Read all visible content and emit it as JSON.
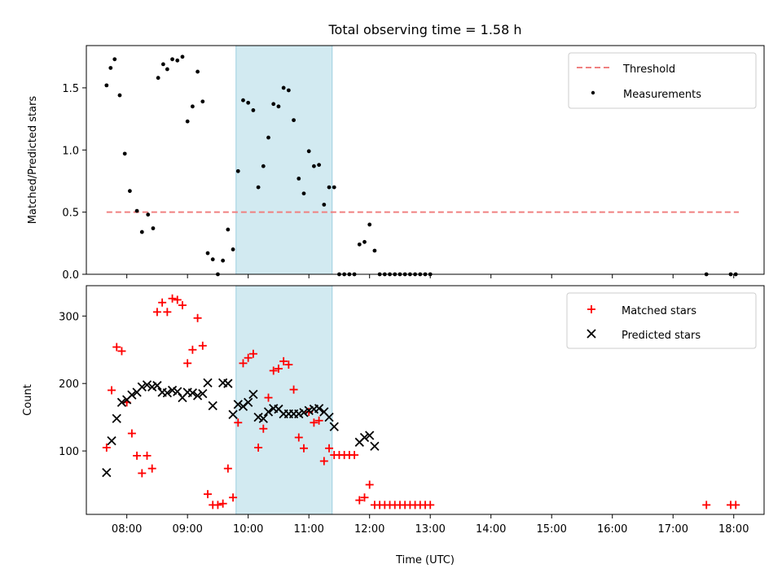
{
  "chart_data": [
    {
      "type": "scatter",
      "title": "Total observing time = 1.58 h",
      "ylabel": "Matched/Predicted stars",
      "xlabel": "",
      "xlim": [
        "07:20",
        "18:30"
      ],
      "ylim": [
        0,
        1.84
      ],
      "yticks": [
        0.0,
        0.5,
        1.0,
        1.5
      ],
      "ytick_labels": [
        "0.0",
        "0.5",
        "1.0",
        "1.5"
      ],
      "highlight_span": {
        "start": "09:48",
        "end": "11:23",
        "color": "#add8e6"
      },
      "threshold": {
        "name": "Threshold",
        "value": 0.5,
        "from": "07:40",
        "to": "18:05",
        "color": "#f08080",
        "style": "dashed"
      },
      "legend_position": "upper right",
      "series": [
        {
          "name": "Measurements",
          "marker": "dot",
          "color": "#000000",
          "points": [
            [
              "07:40",
              1.52
            ],
            [
              "07:44",
              1.66
            ],
            [
              "07:48",
              1.73
            ],
            [
              "07:53",
              1.44
            ],
            [
              "07:58",
              0.97
            ],
            [
              "08:03",
              0.67
            ],
            [
              "08:10",
              0.51
            ],
            [
              "08:15",
              0.34
            ],
            [
              "08:21",
              0.48
            ],
            [
              "08:26",
              0.37
            ],
            [
              "08:31",
              1.58
            ],
            [
              "08:36",
              1.69
            ],
            [
              "08:40",
              1.65
            ],
            [
              "08:45",
              1.73
            ],
            [
              "08:50",
              1.72
            ],
            [
              "08:55",
              1.75
            ],
            [
              "09:00",
              1.23
            ],
            [
              "09:05",
              1.35
            ],
            [
              "09:10",
              1.63
            ],
            [
              "09:15",
              1.39
            ],
            [
              "09:20",
              0.17
            ],
            [
              "09:25",
              0.12
            ],
            [
              "09:30",
              0.0
            ],
            [
              "09:35",
              0.11
            ],
            [
              "09:40",
              0.36
            ],
            [
              "09:45",
              0.2
            ],
            [
              "09:50",
              0.83
            ],
            [
              "09:55",
              1.4
            ],
            [
              "10:00",
              1.38
            ],
            [
              "10:05",
              1.32
            ],
            [
              "10:10",
              0.7
            ],
            [
              "10:15",
              0.87
            ],
            [
              "10:20",
              1.1
            ],
            [
              "10:25",
              1.37
            ],
            [
              "10:30",
              1.35
            ],
            [
              "10:35",
              1.5
            ],
            [
              "10:40",
              1.48
            ],
            [
              "10:45",
              1.24
            ],
            [
              "10:50",
              0.77
            ],
            [
              "10:55",
              0.65
            ],
            [
              "11:00",
              0.99
            ],
            [
              "11:05",
              0.87
            ],
            [
              "11:10",
              0.88
            ],
            [
              "11:15",
              0.56
            ],
            [
              "11:20",
              0.7
            ],
            [
              "11:25",
              0.7
            ],
            [
              "11:30",
              0.0
            ],
            [
              "11:35",
              0.0
            ],
            [
              "11:40",
              0.0
            ],
            [
              "11:45",
              0.0
            ],
            [
              "11:50",
              0.24
            ],
            [
              "11:55",
              0.26
            ],
            [
              "12:00",
              0.4
            ],
            [
              "12:05",
              0.19
            ],
            [
              "12:10",
              0.0
            ],
            [
              "12:15",
              0.0
            ],
            [
              "12:20",
              0.0
            ],
            [
              "12:25",
              0.0
            ],
            [
              "12:30",
              0.0
            ],
            [
              "12:35",
              0.0
            ],
            [
              "12:40",
              0.0
            ],
            [
              "12:45",
              0.0
            ],
            [
              "12:50",
              0.0
            ],
            [
              "12:55",
              0.0
            ],
            [
              "13:00",
              0.0
            ],
            [
              "17:33",
              0.0
            ],
            [
              "17:57",
              0.0
            ],
            [
              "18:02",
              0.0
            ]
          ]
        }
      ]
    },
    {
      "type": "scatter",
      "title": "",
      "ylabel": "Count",
      "xlabel": "Time (UTC)",
      "xlim": [
        "07:20",
        "18:30"
      ],
      "ylim": [
        6,
        345
      ],
      "yticks": [
        100,
        200,
        300
      ],
      "ytick_labels": [
        "100",
        "200",
        "300"
      ],
      "xticks": [
        "08:00",
        "09:00",
        "10:00",
        "11:00",
        "12:00",
        "13:00",
        "14:00",
        "15:00",
        "16:00",
        "17:00",
        "18:00"
      ],
      "highlight_span": {
        "start": "09:48",
        "end": "11:23",
        "color": "#add8e6"
      },
      "legend_position": "upper right",
      "series": [
        {
          "name": "Matched stars",
          "marker": "plus",
          "color": "#ff0000",
          "points": [
            [
              "07:40",
              105
            ],
            [
              "07:45",
              190
            ],
            [
              "07:50",
              254
            ],
            [
              "07:55",
              248
            ],
            [
              "08:00",
              172
            ],
            [
              "08:05",
              126
            ],
            [
              "08:10",
              93
            ],
            [
              "08:15",
              67
            ],
            [
              "08:20",
              93
            ],
            [
              "08:25",
              74
            ],
            [
              "08:30",
              306
            ],
            [
              "08:35",
              320
            ],
            [
              "08:40",
              306
            ],
            [
              "08:45",
              326
            ],
            [
              "08:50",
              324
            ],
            [
              "08:55",
              316
            ],
            [
              "09:00",
              230
            ],
            [
              "09:05",
              250
            ],
            [
              "09:10",
              297
            ],
            [
              "09:15",
              256
            ],
            [
              "09:20",
              36
            ],
            [
              "09:25",
              20
            ],
            [
              "09:30",
              20
            ],
            [
              "09:35",
              22
            ],
            [
              "09:40",
              74
            ],
            [
              "09:45",
              31
            ],
            [
              "09:50",
              142
            ],
            [
              "09:55",
              230
            ],
            [
              "10:00",
              238
            ],
            [
              "10:05",
              244
            ],
            [
              "10:10",
              105
            ],
            [
              "10:15",
              133
            ],
            [
              "10:20",
              179
            ],
            [
              "10:25",
              219
            ],
            [
              "10:30",
              222
            ],
            [
              "10:35",
              233
            ],
            [
              "10:40",
              228
            ],
            [
              "10:45",
              191
            ],
            [
              "10:50",
              120
            ],
            [
              "10:55",
              104
            ],
            [
              "11:00",
              158
            ],
            [
              "11:05",
              142
            ],
            [
              "11:10",
              145
            ],
            [
              "11:15",
              85
            ],
            [
              "11:20",
              104
            ],
            [
              "11:25",
              94
            ],
            [
              "11:30",
              94
            ],
            [
              "11:35",
              94
            ],
            [
              "11:40",
              94
            ],
            [
              "11:45",
              94
            ],
            [
              "11:50",
              27
            ],
            [
              "11:55",
              31
            ],
            [
              "12:00",
              50
            ],
            [
              "12:05",
              20
            ],
            [
              "12:10",
              20
            ],
            [
              "12:15",
              20
            ],
            [
              "12:20",
              20
            ],
            [
              "12:25",
              20
            ],
            [
              "12:30",
              20
            ],
            [
              "12:35",
              20
            ],
            [
              "12:40",
              20
            ],
            [
              "12:45",
              20
            ],
            [
              "12:50",
              20
            ],
            [
              "12:55",
              20
            ],
            [
              "13:00",
              20
            ],
            [
              "17:33",
              20
            ],
            [
              "17:57",
              20
            ],
            [
              "18:02",
              20
            ]
          ]
        },
        {
          "name": "Predicted stars",
          "marker": "x",
          "color": "#000000",
          "points": [
            [
              "07:40",
              68
            ],
            [
              "07:45",
              115
            ],
            [
              "07:50",
              148
            ],
            [
              "07:55",
              172
            ],
            [
              "08:00",
              176
            ],
            [
              "08:05",
              183
            ],
            [
              "08:10",
              187
            ],
            [
              "08:15",
              195
            ],
            [
              "08:20",
              198
            ],
            [
              "08:25",
              195
            ],
            [
              "08:30",
              197
            ],
            [
              "08:35",
              187
            ],
            [
              "08:40",
              186
            ],
            [
              "08:45",
              190
            ],
            [
              "08:50",
              188
            ],
            [
              "08:55",
              179
            ],
            [
              "09:00",
              187
            ],
            [
              "09:05",
              186
            ],
            [
              "09:10",
              182
            ],
            [
              "09:15",
              185
            ],
            [
              "09:20",
              201
            ],
            [
              "09:25",
              167
            ],
            [
              "09:35",
              201
            ],
            [
              "09:40",
              200
            ],
            [
              "09:45",
              154
            ],
            [
              "09:50",
              169
            ],
            [
              "09:55",
              166
            ],
            [
              "10:00",
              172
            ],
            [
              "10:05",
              184
            ],
            [
              "10:10",
              150
            ],
            [
              "10:15",
              148
            ],
            [
              "10:20",
              158
            ],
            [
              "10:25",
              163
            ],
            [
              "10:30",
              162
            ],
            [
              "10:35",
              155
            ],
            [
              "10:40",
              155
            ],
            [
              "10:45",
              155
            ],
            [
              "10:50",
              155
            ],
            [
              "10:55",
              157
            ],
            [
              "11:00",
              160
            ],
            [
              "11:05",
              162
            ],
            [
              "11:10",
              163
            ],
            [
              "11:15",
              158
            ],
            [
              "11:20",
              150
            ],
            [
              "11:25",
              136
            ],
            [
              "11:50",
              113
            ],
            [
              "11:55",
              120
            ],
            [
              "12:00",
              123
            ],
            [
              "12:05",
              107
            ]
          ]
        }
      ]
    }
  ]
}
